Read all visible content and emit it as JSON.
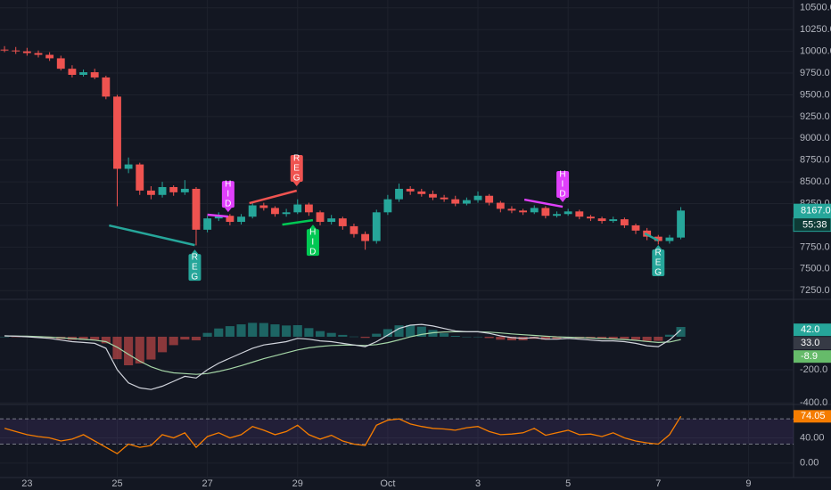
{
  "chart_data": [
    {
      "type": "candlestick",
      "x": [
        -0.5,
        -0.25,
        0,
        0.25,
        0.5,
        0.75,
        1,
        1.25,
        1.5,
        1.75,
        2,
        2.25,
        2.5,
        2.75,
        3,
        3.25,
        3.5,
        3.75,
        4,
        4.25,
        4.5,
        4.75,
        5,
        5.25,
        5.5,
        5.75,
        6,
        6.25,
        6.5,
        6.75,
        7,
        7.25,
        7.5,
        7.75,
        8,
        8.25,
        8.5,
        8.75,
        9,
        9.25,
        9.5,
        9.75,
        10,
        10.25,
        10.5,
        10.75,
        11,
        11.25,
        11.5,
        11.75,
        12,
        12.25,
        12.5,
        12.75,
        13,
        13.25,
        13.5,
        13.75,
        14,
        14.25,
        14.5
      ],
      "xlim": [
        -0.6,
        17.0
      ],
      "xticks": [
        {
          "value": 0,
          "label": "23"
        },
        {
          "value": 2,
          "label": "25"
        },
        {
          "value": 4,
          "label": "27"
        },
        {
          "value": 6,
          "label": "29"
        },
        {
          "value": 8,
          "label": "Oct"
        },
        {
          "value": 10,
          "label": "3"
        },
        {
          "value": 12,
          "label": "5"
        },
        {
          "value": 14,
          "label": "7"
        },
        {
          "value": 16,
          "label": "9"
        }
      ],
      "open": [
        10020,
        10010,
        10000,
        9980,
        9960,
        9920,
        9800,
        9730,
        9760,
        9700,
        9480,
        8650,
        8700,
        8400,
        8350,
        8440,
        8380,
        8420,
        7950,
        8080,
        8110,
        8040,
        8100,
        8230,
        8200,
        8130,
        8150,
        8240,
        8150,
        8040,
        8080,
        7990,
        7900,
        7820,
        8150,
        8300,
        8420,
        8390,
        8360,
        8320,
        8300,
        8250,
        8290,
        8340,
        8260,
        8190,
        8170,
        8150,
        8200,
        8110,
        8130,
        8160,
        8100,
        8080,
        8050,
        8070,
        8000,
        7940,
        7870,
        7820,
        7860
      ],
      "high": [
        10060,
        10050,
        10040,
        10010,
        9990,
        9950,
        9840,
        9790,
        9800,
        9720,
        9500,
        8780,
        8720,
        8450,
        8500,
        8460,
        8520,
        8440,
        8110,
        8150,
        8130,
        8130,
        8270,
        8260,
        8220,
        8190,
        8300,
        8260,
        8170,
        8120,
        8100,
        8020,
        7930,
        8180,
        8350,
        8480,
        8450,
        8420,
        8400,
        8350,
        8340,
        8320,
        8390,
        8360,
        8280,
        8220,
        8190,
        8230,
        8220,
        8160,
        8190,
        8180,
        8120,
        8100,
        8100,
        8090,
        8020,
        7970,
        7890,
        7890,
        8210
      ],
      "low": [
        9990,
        9970,
        9950,
        9930,
        9890,
        9780,
        9700,
        9710,
        9680,
        9450,
        8220,
        8600,
        8350,
        8300,
        8320,
        8340,
        8350,
        7770,
        7920,
        8050,
        8000,
        8010,
        8080,
        8170,
        8100,
        8100,
        8130,
        8110,
        8000,
        8010,
        7950,
        7860,
        7720,
        7790,
        8120,
        8270,
        8350,
        8330,
        8290,
        8270,
        8220,
        8230,
        8260,
        8230,
        8150,
        8140,
        8120,
        8130,
        8080,
        8090,
        8110,
        8070,
        8050,
        8020,
        8030,
        7970,
        7900,
        7830,
        7780,
        7790,
        7840
      ],
      "close": [
        10010,
        10000,
        9980,
        9960,
        9920,
        9800,
        9730,
        9760,
        9700,
        9480,
        8650,
        8700,
        8400,
        8350,
        8440,
        8380,
        8420,
        7950,
        8080,
        8110,
        8040,
        8100,
        8230,
        8200,
        8130,
        8150,
        8240,
        8150,
        8040,
        8080,
        7990,
        7900,
        7820,
        8150,
        8300,
        8420,
        8390,
        8360,
        8320,
        8300,
        8250,
        8290,
        8340,
        8260,
        8190,
        8170,
        8150,
        8200,
        8110,
        8130,
        8160,
        8100,
        8080,
        8050,
        8070,
        8000,
        7940,
        7870,
        7820,
        7860,
        8170
      ],
      "up_color": "#26a69a",
      "down_color": "#ef5350",
      "ylim": [
        7160,
        10590
      ],
      "yticks": [
        {
          "value": 10500,
          "label": "10500.0"
        },
        {
          "value": 10250,
          "label": "10250.0"
        },
        {
          "value": 10000,
          "label": "10000.0"
        },
        {
          "value": 9750,
          "label": "9750.0"
        },
        {
          "value": 9500,
          "label": "9500.0"
        },
        {
          "value": 9250,
          "label": "9250.0"
        },
        {
          "value": 9000,
          "label": "9000.0"
        },
        {
          "value": 8750,
          "label": "8750.0"
        },
        {
          "value": 8500,
          "label": "8500.0"
        },
        {
          "value": 8250,
          "label": "8250.0"
        },
        {
          "value": 8000,
          "label": "8000.0"
        },
        {
          "value": 7750,
          "label": "7750.0"
        },
        {
          "value": 7500,
          "label": "7500.0"
        },
        {
          "value": 7250,
          "label": "7250.0"
        }
      ],
      "grid": true,
      "last_price": {
        "value": 8167,
        "label": "8167.0",
        "countdown": "55:38",
        "color": "#26a69a"
      },
      "divergences": [
        {
          "label": "REG",
          "color": "#26a69a",
          "x": [
            1.82,
            3.72
          ],
          "y": [
            7999,
            7773
          ],
          "position": "below"
        },
        {
          "label": "HID",
          "color": "#e040fb",
          "x": [
            4.0,
            4.46
          ],
          "y": [
            8122,
            8101
          ],
          "position": "above"
        },
        {
          "label": "REG",
          "color": "#ef5350",
          "x": [
            4.93,
            5.98
          ],
          "y": [
            8255,
            8399
          ],
          "position": "above"
        },
        {
          "label": "HID",
          "color": "#00c853",
          "x": [
            5.66,
            6.34
          ],
          "y": [
            8009,
            8060
          ],
          "position": "below"
        },
        {
          "label": "HID",
          "color": "#e040fb",
          "x": [
            11.03,
            11.88
          ],
          "y": [
            8296,
            8214
          ],
          "position": "above"
        },
        {
          "label": "REG",
          "color": "#26a69a",
          "x": [
            13.7,
            14.0
          ],
          "y": [
            7907,
            7825
          ],
          "position": "below"
        }
      ]
    },
    {
      "type": "macd",
      "histogram": {
        "values": [
          0,
          -1,
          -3,
          -6,
          -8,
          -14,
          -19,
          -19,
          -19,
          -40,
          -136,
          -173,
          -162,
          -138,
          -94,
          -51,
          -17,
          -22,
          23,
          50,
          64,
          75,
          84,
          83,
          75,
          68,
          70,
          52,
          34,
          23,
          11,
          1,
          -7,
          18,
          46,
          69,
          71,
          61,
          41,
          21,
          5,
          0,
          0,
          -8,
          -18,
          -22,
          -22,
          -13,
          -18,
          -14,
          -7,
          -10,
          -12,
          -14,
          -11,
          -13,
          -18,
          -26,
          -25,
          12,
          59
        ],
        "up_color": "#26a69a",
        "down_color": "#ef5350"
      },
      "macd": {
        "values": [
          5,
          3,
          0,
          -5,
          -10,
          -20,
          -30,
          -35,
          -40,
          -70,
          -200,
          -280,
          -310,
          -320,
          -300,
          -270,
          -240,
          -250,
          -200,
          -160,
          -130,
          -100,
          -70,
          -50,
          -40,
          -30,
          -10,
          -15,
          -25,
          -30,
          -40,
          -50,
          -60,
          -30,
          10,
          50,
          70,
          75,
          65,
          50,
          35,
          30,
          30,
          20,
          5,
          -5,
          -10,
          -5,
          -15,
          -15,
          -10,
          -15,
          -20,
          -25,
          -25,
          -30,
          -40,
          -55,
          -60,
          -20,
          42
        ],
        "color": "#d1d4dc"
      },
      "signal": {
        "values": [
          5,
          4,
          3,
          1,
          -2,
          -6,
          -11,
          -16,
          -21,
          -30,
          -64,
          -107,
          -148,
          -182,
          -206,
          -219,
          -223,
          -228,
          -223,
          -210,
          -194,
          -175,
          -154,
          -133,
          -115,
          -98,
          -80,
          -67,
          -59,
          -53,
          -51,
          -51,
          -53,
          -48,
          -36,
          -19,
          -1,
          14,
          24,
          29,
          30,
          30,
          30,
          28,
          23,
          17,
          12,
          8,
          3,
          -1,
          -3,
          -5,
          -8,
          -11,
          -14,
          -17,
          -22,
          -29,
          -35,
          -32,
          -17
        ],
        "color": "#a5d6a7"
      },
      "ylim": [
        -405,
        221
      ],
      "yticks": [
        {
          "value": -200,
          "label": "-200.0"
        },
        {
          "value": -400,
          "label": "-400.0"
        }
      ],
      "tags": [
        {
          "value": 42,
          "label": "42.0",
          "color": "#26a69a"
        },
        {
          "value": 33,
          "label": "33.0",
          "color": "#363a45"
        },
        {
          "value": -8.9,
          "label": "-8.9",
          "color": "#66bb6a"
        }
      ]
    },
    {
      "type": "line",
      "values": [
        55,
        50,
        45,
        42,
        40,
        35,
        38,
        45,
        35,
        25,
        15,
        30,
        25,
        28,
        45,
        40,
        48,
        25,
        42,
        48,
        40,
        45,
        58,
        52,
        45,
        50,
        60,
        45,
        38,
        44,
        35,
        30,
        28,
        60,
        68,
        70,
        62,
        58,
        55,
        54,
        52,
        56,
        58,
        50,
        45,
        46,
        48,
        55,
        44,
        48,
        52,
        45,
        46,
        42,
        48,
        40,
        35,
        32,
        30,
        45,
        74.05
      ],
      "color": "#f57c00",
      "ylim": [
        -21.4,
        91.4
      ],
      "yticks": [
        {
          "value": 40,
          "label": "40.00"
        },
        {
          "value": 0,
          "label": "0.00"
        }
      ],
      "bands": [
        70,
        30
      ],
      "band_fill": "rgba(126,87,194,0.14)"
    }
  ]
}
